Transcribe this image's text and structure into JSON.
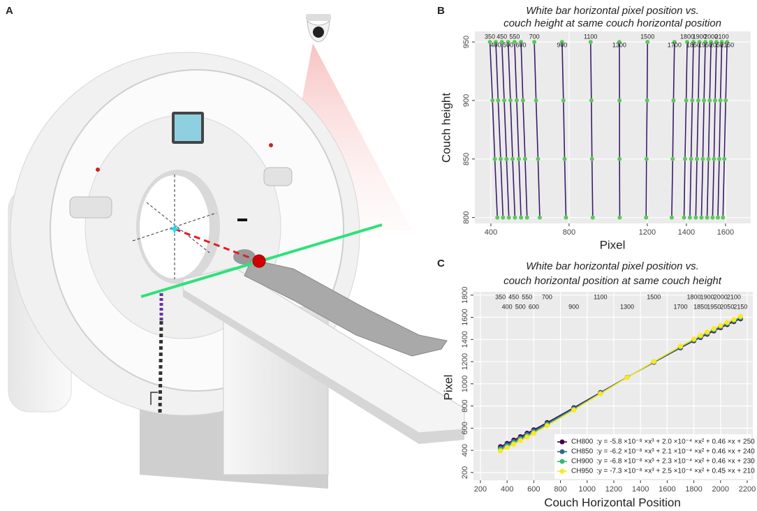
{
  "panel_labels": [
    "A",
    "B",
    "C"
  ],
  "chart_data": [
    {
      "type": "line",
      "title": [
        "White bar horizontal pixel position vs.",
        "couch height at same couch horizontal position"
      ],
      "x_label": "Pixel",
      "y_label": "Couch height",
      "y": [
        800,
        850,
        900,
        950
      ],
      "line_color": "#3b1c6b",
      "point_color": "#5cc85c",
      "xlim": [
        318,
        1729
      ],
      "ylim": [
        795,
        959
      ],
      "xticks": [
        400,
        800,
        1200,
        1400,
        1600
      ],
      "yticks": [
        800,
        850,
        900,
        950
      ],
      "grid": true,
      "series": [
        {
          "name": "350",
          "values": [
            433,
            420,
            408,
            395
          ]
        },
        {
          "name": "400",
          "values": [
            462,
            450,
            437,
            425
          ]
        },
        {
          "name": "450",
          "values": [
            492,
            480,
            468,
            456
          ]
        },
        {
          "name": "500",
          "values": [
            523,
            511,
            500,
            488
          ]
        },
        {
          "name": "550",
          "values": [
            554,
            543,
            532,
            521
          ]
        },
        {
          "name": "600",
          "values": [
            585,
            575,
            564,
            554
          ]
        },
        {
          "name": "700",
          "values": [
            650,
            641,
            631,
            622
          ]
        },
        {
          "name": "900",
          "values": [
            784,
            777,
            771,
            764
          ]
        },
        {
          "name": "1100",
          "values": [
            921,
            917,
            914,
            910
          ]
        },
        {
          "name": "1300",
          "values": [
            1059,
            1058,
            1058,
            1057
          ]
        },
        {
          "name": "1500",
          "values": [
            1194,
            1196,
            1199,
            1201
          ]
        },
        {
          "name": "1700",
          "values": [
            1325,
            1330,
            1334,
            1339
          ]
        },
        {
          "name": "1800",
          "values": [
            1388,
            1393,
            1399,
            1404
          ]
        },
        {
          "name": "1850",
          "values": [
            1418,
            1424,
            1430,
            1436
          ]
        },
        {
          "name": "1900",
          "values": [
            1448,
            1454,
            1461,
            1467
          ]
        },
        {
          "name": "1950",
          "values": [
            1477,
            1484,
            1490,
            1497
          ]
        },
        {
          "name": "2000",
          "values": [
            1506,
            1513,
            1519,
            1526
          ]
        },
        {
          "name": "2050",
          "values": [
            1534,
            1541,
            1547,
            1554
          ]
        },
        {
          "name": "2100",
          "values": [
            1561,
            1568,
            1574,
            1581
          ]
        },
        {
          "name": "2150",
          "values": [
            1587,
            1594,
            1601,
            1608
          ]
        }
      ]
    },
    {
      "type": "line",
      "title": [
        "White bar horizontal pixel position vs.",
        "couch horizontal position at same couch height"
      ],
      "x_label": "Couch Horizontal Position",
      "y_label": "Pixel",
      "x": [
        350,
        400,
        450,
        500,
        550,
        600,
        700,
        900,
        1100,
        1300,
        1500,
        1700,
        1800,
        1850,
        1900,
        1950,
        2000,
        2050,
        2100,
        2150
      ],
      "xlim": [
        148,
        2242
      ],
      "ylim": [
        130,
        1830
      ],
      "xticks": [
        200,
        400,
        600,
        800,
        1000,
        1200,
        1400,
        1600,
        1800,
        2000,
        2200
      ],
      "yticks": [
        200,
        400,
        600,
        800,
        1000,
        1200,
        1400,
        1600,
        1800
      ],
      "grid": true,
      "legend": "bottom-right",
      "series": [
        {
          "name": "CH800",
          "color": "#440154",
          "fit_label": ":y =  -5.8 ×10⁻⁸ ×x³ + 2.0 ×10⁻⁴ ×x² + 0.46 ×x + 250",
          "values": [
            433,
            462,
            492,
            523,
            554,
            585,
            650,
            784,
            921,
            1059,
            1194,
            1325,
            1388,
            1418,
            1448,
            1477,
            1506,
            1534,
            1561,
            1587
          ]
        },
        {
          "name": "CH850",
          "color": "#31688e",
          "fit_label": ":y =  -6.2 ×10⁻⁸ ×x³ + 2.1 ×10⁻⁴ ×x² + 0.46 ×x + 240",
          "values": [
            420,
            450,
            480,
            511,
            543,
            575,
            641,
            777,
            917,
            1058,
            1196,
            1330,
            1393,
            1424,
            1454,
            1484,
            1513,
            1541,
            1568,
            1594
          ]
        },
        {
          "name": "CH900",
          "color": "#35b779",
          "fit_label": ":y =  -6.8 ×10⁻⁸ ×x³ + 2.3 ×10⁻⁴ ×x² + 0.46 ×x + 230",
          "values": [
            408,
            437,
            468,
            500,
            532,
            564,
            631,
            771,
            914,
            1058,
            1199,
            1334,
            1399,
            1430,
            1461,
            1490,
            1519,
            1547,
            1574,
            1601
          ]
        },
        {
          "name": "CH950",
          "color": "#fde725",
          "fit_label": ":y =  -7.3 ×10⁻⁸ ×x³ + 2.5 ×10⁻⁴ ×x² + 0.45 ×x + 210",
          "values": [
            395,
            425,
            456,
            488,
            521,
            554,
            622,
            764,
            910,
            1057,
            1201,
            1339,
            1404,
            1436,
            1467,
            1497,
            1526,
            1554,
            1581,
            1608
          ]
        }
      ]
    }
  ]
}
